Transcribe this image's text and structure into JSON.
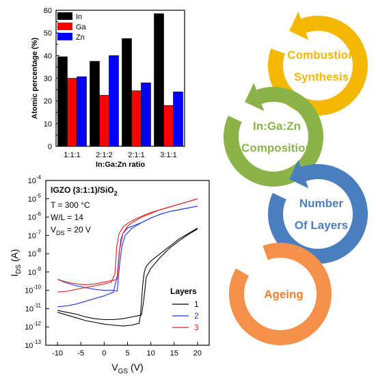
{
  "chart_data": [
    {
      "type": "bar",
      "xlabel": "In:Ga:Zn ratio",
      "ylabel": "Atomic percentage (%)",
      "ylim": [
        0,
        60
      ],
      "yticks": [
        0,
        10,
        20,
        30,
        40,
        50,
        60
      ],
      "categories": [
        "1:1:1",
        "2:1:2",
        "2:1:1",
        "3:1:1"
      ],
      "legend_position": "top-left",
      "grid": false,
      "series": [
        {
          "name": "In",
          "color": "#000000",
          "values": [
            39.5,
            37.5,
            47.5,
            58.5
          ]
        },
        {
          "name": "Ga",
          "color": "#ff0000",
          "values": [
            30,
            22.5,
            24.5,
            18
          ]
        },
        {
          "name": "Zn",
          "color": "#0000ff",
          "values": [
            30.7,
            40,
            28,
            24
          ]
        }
      ]
    },
    {
      "type": "line",
      "title": "IGZO (3:1:1)/SiO2",
      "title_main": "IGZO (3:1:1)/SiO",
      "title_sub": "2",
      "conditions": [
        {
          "main": "T = 300 °C",
          "sub": ""
        },
        {
          "main": "W/L = 14",
          "sub": ""
        },
        {
          "main": "V",
          "sub": "DS",
          "suffix": " = 20 V"
        }
      ],
      "xlabel": "VGS (V)",
      "xlabel_main": "V",
      "xlabel_sub": "GS",
      "xlabel_unit": " (V)",
      "ylabel": "IDS (A)",
      "ylabel_main": "I",
      "ylabel_sub": "DS",
      "ylabel_unit": " (A)",
      "xlim": [
        -12.5,
        22.5
      ],
      "xticks": [
        -10,
        -5,
        0,
        5,
        10,
        15,
        20
      ],
      "y_scale": "log",
      "ylim_exponent": [
        -13,
        -4
      ],
      "yticks_exponent": [
        -13,
        -12,
        -11,
        -10,
        -9,
        -8,
        -7,
        -6,
        -5,
        -4
      ],
      "legend_title": "Layers",
      "legend_position": "bottom-right",
      "series": [
        {
          "name": "1",
          "color": "#000000",
          "forward": {
            "x": [
              -10,
              -8,
              -6,
              -4,
              -2,
              0,
              2,
              4,
              6,
              7.5,
              7.8,
              8,
              8.3,
              8.6,
              9,
              10,
              12,
              14,
              16,
              18,
              20
            ],
            "logy": [
              -11.2,
              -11.35,
              -11.5,
              -11.65,
              -11.75,
              -11.85,
              -11.9,
              -11.95,
              -11.9,
              -11.8,
              -11.3,
              -10.6,
              -9.6,
              -9.0,
              -8.7,
              -8.4,
              -8.0,
              -7.6,
              -7.2,
              -6.9,
              -6.6
            ]
          },
          "reverse": {
            "x": [
              -10,
              -8,
              -6,
              -4,
              -2,
              0,
              2,
              4,
              6,
              7,
              8,
              8.5,
              9,
              10,
              12,
              14,
              16,
              18,
              20
            ],
            "logy": [
              -11.1,
              -11.2,
              -11.3,
              -11.45,
              -11.55,
              -11.6,
              -11.6,
              -11.55,
              -11.45,
              -11.4,
              -11.35,
              -10.5,
              -9.3,
              -8.8,
              -8.2,
              -7.7,
              -7.3,
              -6.95,
              -6.65
            ]
          }
        },
        {
          "name": "2",
          "color": "#1f33ff",
          "forward": {
            "x": [
              -10,
              -8,
              -6,
              -4,
              -2,
              0,
              2,
              2.8,
              3.2,
              3.6,
              4,
              5,
              6,
              8,
              10,
              12,
              14,
              16,
              18,
              20
            ],
            "logy": [
              -10.9,
              -10.85,
              -10.75,
              -10.6,
              -10.45,
              -10.3,
              -10.1,
              -9.2,
              -8.0,
              -7.2,
              -6.9,
              -6.6,
              -6.5,
              -6.3,
              -6.05,
              -5.85,
              -5.7,
              -5.6,
              -5.5,
              -5.4
            ]
          },
          "reverse": {
            "x": [
              -10,
              -8,
              -6,
              -4,
              -2,
              0,
              2,
              2.8,
              3.3,
              3.8,
              4.5,
              6,
              8,
              10,
              12,
              14,
              16,
              18,
              20
            ],
            "logy": [
              -9.4,
              -9.6,
              -9.75,
              -9.85,
              -9.95,
              -10.0,
              -10.0,
              -10.05,
              -8.6,
              -7.6,
              -7.0,
              -6.6,
              -6.3,
              -6.05,
              -5.85,
              -5.7,
              -5.6,
              -5.5,
              -5.4
            ]
          }
        },
        {
          "name": "3",
          "color": "#e02020",
          "forward": {
            "x": [
              -10,
              -8,
              -6,
              -4,
              -2,
              0,
              1.5,
              2.3,
              2.7,
              3.2,
              4,
              5,
              6,
              8,
              10,
              12,
              14,
              16,
              18,
              20
            ],
            "logy": [
              -10.1,
              -10.05,
              -9.95,
              -9.85,
              -9.75,
              -9.65,
              -9.55,
              -9.1,
              -7.6,
              -6.9,
              -6.55,
              -6.35,
              -6.2,
              -5.95,
              -5.75,
              -5.6,
              -5.45,
              -5.3,
              -5.15,
              -5.0
            ]
          },
          "reverse": {
            "x": [
              -10,
              -8,
              -6,
              -4,
              -2,
              0,
              2,
              2.8,
              3.3,
              4,
              5,
              6,
              8,
              10,
              12,
              14,
              16,
              18,
              20
            ],
            "logy": [
              -9.4,
              -9.55,
              -9.65,
              -9.7,
              -9.65,
              -9.55,
              -9.45,
              -9.4,
              -7.8,
              -6.9,
              -6.5,
              -6.3,
              -6.0,
              -5.8,
              -5.6,
              -5.45,
              -5.3,
              -5.15,
              -5.0
            ]
          }
        }
      ]
    }
  ],
  "cycle_labels": [
    {
      "lines": [
        "Combustion",
        "Synthesis"
      ],
      "color": "#f5b800",
      "ring_color": "#f5b800"
    },
    {
      "lines": [
        "In:Ga:Zn",
        "Composition"
      ],
      "color": "#8ab34a",
      "ring_color": "#8ab34a"
    },
    {
      "lines": [
        "Number",
        "Of Layers"
      ],
      "color": "#4a7ebf",
      "ring_color": "#4a7ebf"
    },
    {
      "lines": [
        "Ageing"
      ],
      "color": "#f07f30",
      "ring_color": "#f5914a"
    }
  ]
}
